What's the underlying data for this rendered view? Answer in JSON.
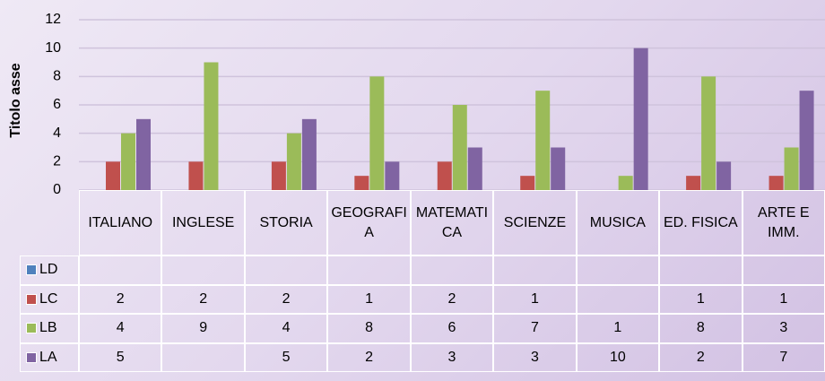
{
  "chart_data": {
    "type": "bar",
    "y_axis_label": "Titolo asse",
    "categories": [
      "ITALIANO",
      "INGLESE",
      "STORIA",
      "GEOGRAFIA",
      "MATEMATICA",
      "SCIENZE",
      "MUSICA",
      "ED. FISICA",
      "ARTE E IMM."
    ],
    "series": [
      {
        "name": "LD",
        "color": "#4f81bd",
        "values": [
          null,
          null,
          null,
          null,
          null,
          null,
          null,
          null,
          null
        ]
      },
      {
        "name": "LC",
        "color": "#c0504d",
        "values": [
          2,
          2,
          2,
          1,
          2,
          1,
          null,
          1,
          1
        ]
      },
      {
        "name": "LB",
        "color": "#9bbb59",
        "values": [
          4,
          9,
          4,
          8,
          6,
          7,
          1,
          8,
          3
        ]
      },
      {
        "name": "LA",
        "color": "#8064a2",
        "values": [
          5,
          null,
          5,
          2,
          3,
          3,
          10,
          2,
          7
        ]
      }
    ],
    "ylim": [
      0,
      12
    ],
    "yticks": [
      0,
      2,
      4,
      6,
      8,
      10,
      12
    ],
    "grid": true,
    "data_table": true
  }
}
